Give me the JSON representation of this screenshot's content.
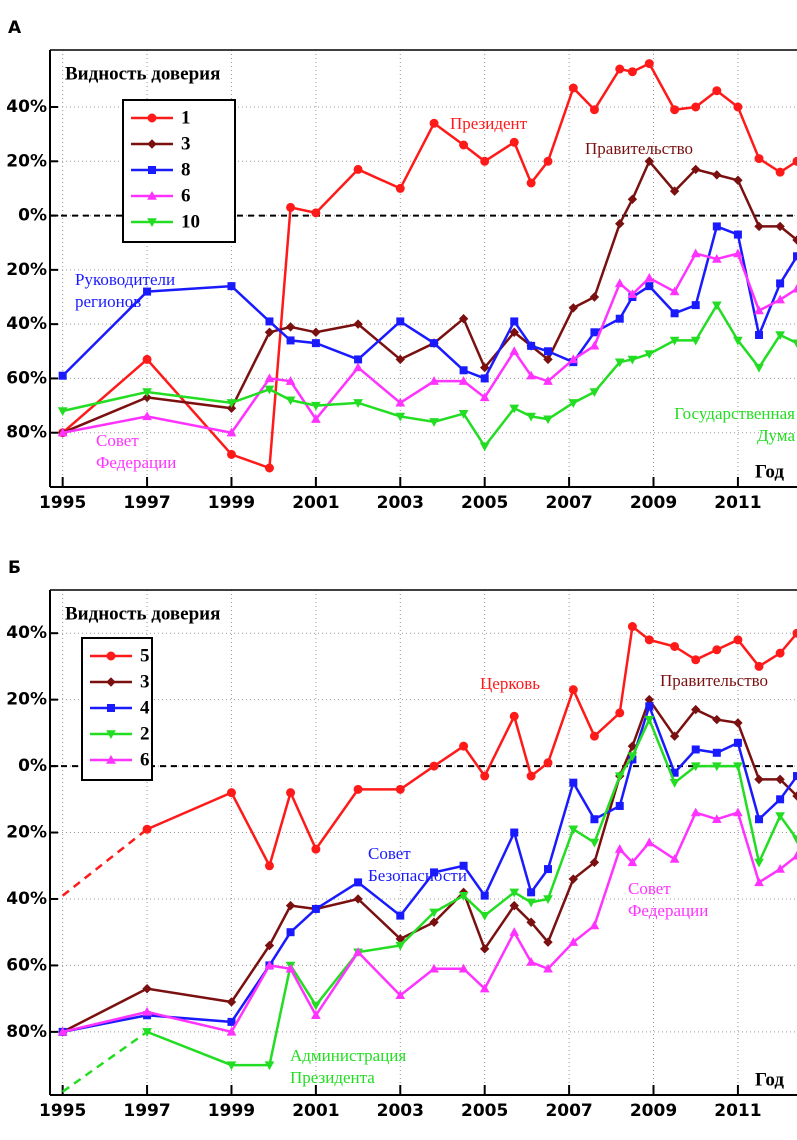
{
  "chart_data": [
    {
      "type": "line",
      "panel": "А",
      "title": "Видность доверия",
      "xlabel": "Год",
      "x": [
        1995,
        1997,
        1999,
        1999.9,
        2000.4,
        2001,
        2002,
        2003,
        2003.8,
        2004.5,
        2005,
        2005.7,
        2006.1,
        2006.5,
        2007.1,
        2007.6,
        2008.2,
        2008.5,
        2008.9,
        2009.5,
        2010,
        2010.5,
        2011,
        2011.5,
        2012,
        2012.4
      ],
      "xlim": [
        1994.7,
        2012.4
      ],
      "xticks": [
        1995,
        1997,
        1999,
        2001,
        2003,
        2005,
        2007,
        2009,
        2011
      ],
      "ylim": [
        -100,
        61
      ],
      "yticks": [
        {
          "value": -80,
          "label": "80%"
        },
        {
          "value": -60,
          "label": "60%"
        },
        {
          "value": -40,
          "label": "40%"
        },
        {
          "value": -20,
          "label": "20%"
        },
        {
          "value": 0,
          "label": "0%"
        },
        {
          "value": 20,
          "label": "20%"
        },
        {
          "value": 40,
          "label": "40%"
        }
      ],
      "grid": true,
      "zero_line": true,
      "legend": "upper left",
      "series": [
        {
          "name": "1",
          "color": "#ff1a1a",
          "marker": "circle",
          "values": [
            -80,
            -53,
            -88,
            -93,
            3,
            1,
            17,
            10,
            34,
            26,
            20,
            27,
            12,
            20,
            47,
            39,
            54,
            53,
            56,
            39,
            40,
            46,
            40,
            21,
            16,
            20
          ]
        },
        {
          "name": "3",
          "color": "#7a1010",
          "marker": "diamond",
          "values": [
            -80,
            -67,
            -71,
            -43,
            -41,
            -43,
            -40,
            -53,
            -47,
            -38,
            -56,
            -43,
            -48,
            -53,
            -34,
            -30,
            -3,
            6,
            20,
            9,
            17,
            15,
            13,
            -4,
            -4,
            -9
          ]
        },
        {
          "name": "8",
          "color": "#1a1aff",
          "marker": "square",
          "values": [
            -59,
            -28,
            -26,
            -39,
            -46,
            -47,
            -53,
            -39,
            -47,
            -57,
            -60,
            -39,
            -48,
            -50,
            -54,
            -43,
            -38,
            -30,
            -26,
            -36,
            -33,
            -4,
            -7,
            -44,
            -25,
            -15
          ]
        },
        {
          "name": "6",
          "color": "#ff33ff",
          "marker": "triangle-up",
          "values": [
            -80,
            -74,
            -80,
            -60,
            -61,
            -75,
            -56,
            -69,
            -61,
            -61,
            -67,
            -50,
            -59,
            -61,
            -53,
            -48,
            -25,
            -29,
            -23,
            -28,
            -14,
            -16,
            -14,
            -35,
            -31,
            -27
          ]
        },
        {
          "name": "10",
          "color": "#22dd22",
          "marker": "triangle-down",
          "values": [
            -72,
            -65,
            -69,
            -64,
            -68,
            -70,
            -69,
            -74,
            -76,
            -73,
            -85,
            -71,
            -74,
            -75,
            -69,
            -65,
            -54,
            -53,
            -51,
            -46,
            -46,
            -33,
            -46,
            -56,
            -44,
            -47
          ]
        }
      ],
      "annotations": [
        {
          "lines": [
            "Президент"
          ],
          "color": "#ff1a1a"
        },
        {
          "lines": [
            "Правительство"
          ],
          "color": "#7a1010"
        },
        {
          "lines": [
            "Руководители",
            "регионов"
          ],
          "color": "#1a1aff"
        },
        {
          "lines": [
            "Государственная",
            "Дума"
          ],
          "color": "#22dd22"
        },
        {
          "lines": [
            "Совет",
            "Федерации"
          ],
          "color": "#ff33ff"
        }
      ]
    },
    {
      "type": "line",
      "panel": "Б",
      "title": "Видность доверия",
      "xlabel": "Год",
      "x": [
        1995,
        1997,
        1999,
        1999.9,
        2000.4,
        2001,
        2002,
        2003,
        2003.8,
        2004.5,
        2005,
        2005.7,
        2006.1,
        2006.5,
        2007.1,
        2007.6,
        2008.2,
        2008.5,
        2008.9,
        2009.5,
        2010,
        2010.5,
        2011,
        2011.5,
        2012,
        2012.4
      ],
      "xlim": [
        1994.7,
        2012.4
      ],
      "xticks": [
        1995,
        1997,
        1999,
        2001,
        2003,
        2005,
        2007,
        2009,
        2011
      ],
      "ylim": [
        -99,
        53
      ],
      "yticks": [
        {
          "value": -80,
          "label": "80%"
        },
        {
          "value": -60,
          "label": "60%"
        },
        {
          "value": -40,
          "label": "40%"
        },
        {
          "value": -20,
          "label": "20%"
        },
        {
          "value": 0,
          "label": "0%"
        },
        {
          "value": 20,
          "label": "20%"
        },
        {
          "value": 40,
          "label": "40%"
        }
      ],
      "grid": true,
      "zero_line": true,
      "legend": "upper left",
      "series": [
        {
          "name": "5",
          "color": "#ff1a1a",
          "marker": "circle",
          "dashed_first": true,
          "values": [
            -39,
            -19,
            -8,
            -30,
            -8,
            -25,
            -7,
            -7,
            0,
            6,
            -3,
            15,
            -3,
            1,
            23,
            9,
            16,
            42,
            38,
            36,
            32,
            35,
            38,
            30,
            34,
            40
          ]
        },
        {
          "name": "3",
          "color": "#7a1010",
          "marker": "diamond",
          "values": [
            -80,
            -67,
            -71,
            -54,
            -42,
            -43,
            -40,
            -52,
            -47,
            -38,
            -55,
            -42,
            -47,
            -53,
            -34,
            -29,
            -3,
            6,
            20,
            9,
            17,
            14,
            13,
            -4,
            -4,
            -9
          ]
        },
        {
          "name": "4",
          "color": "#1a1aff",
          "marker": "square",
          "values": [
            -80,
            -75,
            -77,
            -60,
            -50,
            -43,
            -35,
            -45,
            -32,
            -30,
            -39,
            -20,
            -38,
            -31,
            -5,
            -16,
            -12,
            2,
            18,
            -2,
            5,
            4,
            7,
            -16,
            -10,
            -3
          ]
        },
        {
          "name": "2",
          "color": "#22dd22",
          "marker": "triangle-down",
          "dashed_first": true,
          "values": [
            -98,
            -80,
            -90,
            -90,
            -60,
            -72,
            -56,
            -54,
            -44,
            -39,
            -45,
            -38,
            -41,
            -40,
            -19,
            -23,
            -3,
            3,
            14,
            -5,
            0,
            0,
            0,
            -29,
            -15,
            -22
          ]
        },
        {
          "name": "6",
          "color": "#ff33ff",
          "marker": "triangle-up",
          "values": [
            -80,
            -74,
            -80,
            -60,
            -61,
            -75,
            -56,
            -69,
            -61,
            -61,
            -67,
            -50,
            -59,
            -61,
            -53,
            -48,
            -25,
            -29,
            -23,
            -28,
            -14,
            -16,
            -14,
            -35,
            -31,
            -27
          ]
        }
      ],
      "annotations": [
        {
          "lines": [
            "Церковь"
          ],
          "color": "#ff1a1a"
        },
        {
          "lines": [
            "Правительство"
          ],
          "color": "#7a1010"
        },
        {
          "lines": [
            "Совет",
            "Безопасности"
          ],
          "color": "#1a1aff"
        },
        {
          "lines": [
            "Совет",
            "Федерации"
          ],
          "color": "#ff33ff"
        },
        {
          "lines": [
            "Администрация",
            "Президента"
          ],
          "color": "#22dd22"
        }
      ]
    }
  ]
}
